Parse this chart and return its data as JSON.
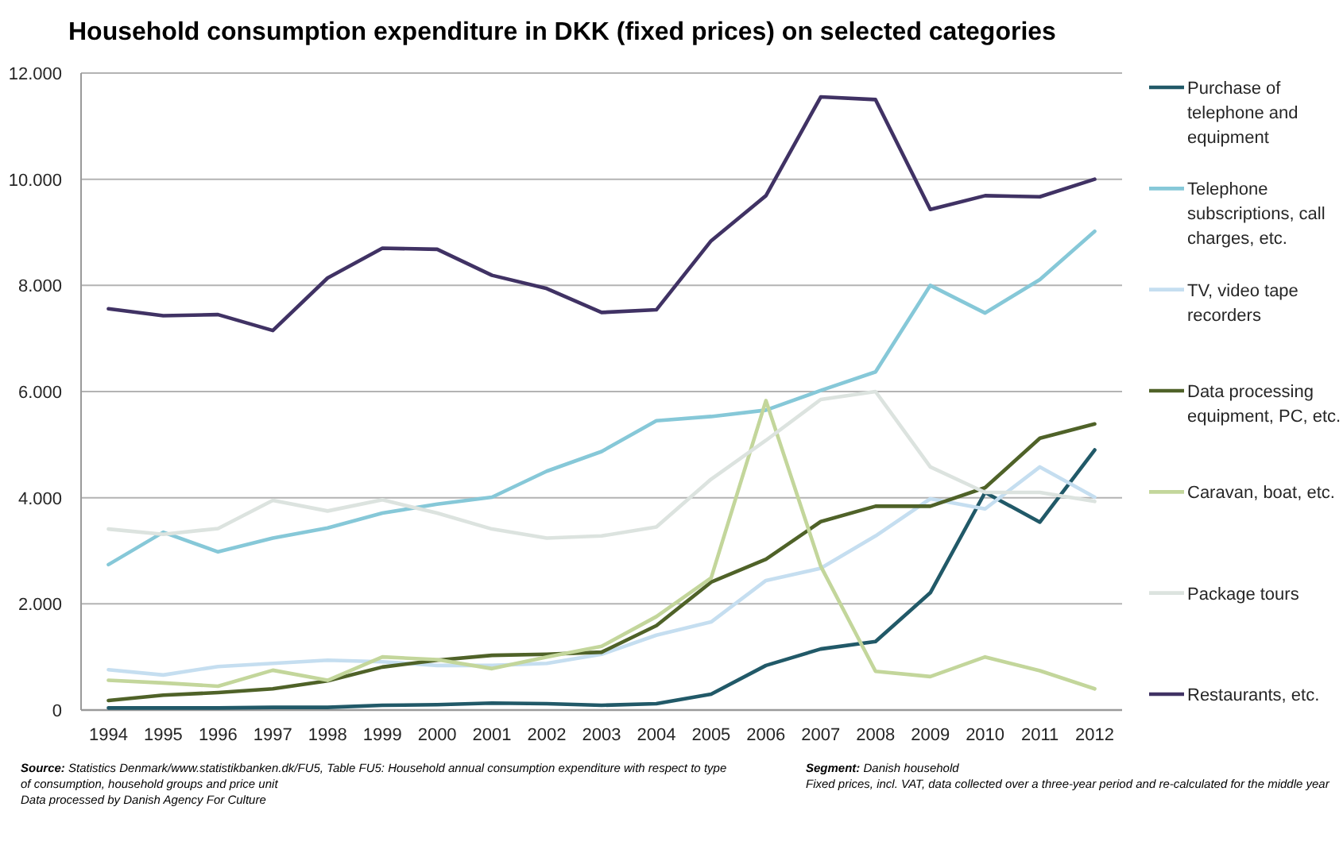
{
  "chart_data": {
    "type": "line",
    "title": "Household consumption expenditure in DKK (fixed prices) on selected categories",
    "categories": [
      "1994",
      "1995",
      "1996",
      "1997",
      "1998",
      "1999",
      "2000",
      "2001",
      "2002",
      "2003",
      "2004",
      "2005",
      "2006",
      "2007",
      "2008",
      "2009",
      "2010",
      "2011",
      "2012"
    ],
    "series": [
      {
        "name": "Purchase of telephone and equipment",
        "color": "#215968",
        "values": [
          40,
          40,
          40,
          50,
          50,
          90,
          100,
          130,
          120,
          90,
          120,
          300,
          840,
          1150,
          1290,
          2210,
          4100,
          3540,
          4900
        ]
      },
      {
        "name": "Telephone subscriptions, call charges, etc.",
        "color": "#86c8d8",
        "values": [
          2740,
          3350,
          2980,
          3240,
          3430,
          3710,
          3880,
          4010,
          4500,
          4870,
          5450,
          5530,
          5650,
          6020,
          6370,
          8000,
          7480,
          8110,
          9020
        ]
      },
      {
        "name": "TV, video tape recorders",
        "color": "#c5def0",
        "values": [
          760,
          660,
          820,
          880,
          940,
          910,
          840,
          840,
          880,
          1050,
          1410,
          1660,
          2440,
          2670,
          3280,
          3980,
          3790,
          4580,
          4010
        ]
      },
      {
        "name": "Data processing equipment, PC, etc.",
        "color": "#4f6228",
        "values": [
          180,
          280,
          330,
          400,
          550,
          810,
          940,
          1030,
          1050,
          1090,
          1590,
          2410,
          2840,
          3550,
          3840,
          3840,
          4190,
          5120,
          5390
        ]
      },
      {
        "name": "Caravan, boat, etc.",
        "color": "#c3d69b",
        "values": [
          560,
          510,
          450,
          750,
          560,
          1000,
          950,
          780,
          1000,
          1200,
          1760,
          2490,
          5830,
          2710,
          730,
          630,
          1000,
          740,
          400
        ]
      },
      {
        "name": "Package tours",
        "color": "#dce3df",
        "values": [
          3410,
          3310,
          3420,
          3950,
          3750,
          3960,
          3710,
          3410,
          3240,
          3280,
          3450,
          4350,
          5080,
          5850,
          6000,
          4580,
          4100,
          4100,
          3930
        ]
      },
      {
        "name": "Restaurants, etc.",
        "color": "#403264",
        "values": [
          7560,
          7430,
          7450,
          7150,
          8140,
          8700,
          8680,
          8190,
          7940,
          7490,
          7540,
          8840,
          9690,
          11550,
          11500,
          9430,
          9690,
          9670,
          10000
        ]
      }
    ],
    "ylim": [
      0,
      12000
    ],
    "yticks": [
      0,
      {
        "value": 2000,
        "label": "2.000"
      },
      {
        "value": 4000,
        "label": "4.000"
      },
      {
        "value": 6000,
        "label": "6.000"
      },
      {
        "value": 8000,
        "label": "8.000"
      },
      {
        "value": 10000,
        "label": "10.000"
      },
      {
        "value": 12000,
        "label": "12.000"
      }
    ],
    "grid": "y",
    "legend": "right",
    "annotations": [
      "Source: Statistics Denmark/www.statistikbanken.dk/FU5, Table FU5: Household annual consumption expenditure with respect to type of consumption, household groups and price unit",
      "Data processed by Danish Agency For Culture",
      "Segment: Danish household",
      "Fixed prices, incl. VAT, data collected over a three-year period and re-calculated for the middle year"
    ]
  }
}
